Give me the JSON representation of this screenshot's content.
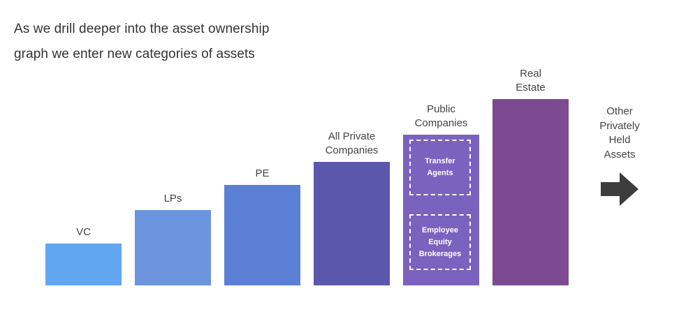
{
  "title": {
    "line1": "As we drill deeper into the asset ownership",
    "line2": "graph we enter new categories of assets"
  },
  "chart_data": {
    "type": "bar",
    "categories": [
      [
        "VC"
      ],
      [
        "LPs"
      ],
      [
        "PE"
      ],
      [
        "All Private",
        "Companies"
      ],
      [
        "Public",
        "Companies"
      ],
      [
        "Real",
        "Estate"
      ]
    ],
    "values": [
      1,
      1.8,
      2.4,
      2.95,
      3.6,
      4.45
    ],
    "ylim": [
      0,
      5
    ],
    "colors": [
      "#62a6f2",
      "#6c94df",
      "#5c7fd6",
      "#5a57ac",
      "#7c62bf",
      "#7d4a91"
    ],
    "grid": false,
    "legend": "none",
    "annotations": [
      {
        "category": "Public Companies",
        "lines": [
          "Transfer",
          "Agents"
        ]
      },
      {
        "category": "Public Companies",
        "lines": [
          "Employee",
          "Equity",
          "Brokerages"
        ]
      }
    ]
  },
  "side": {
    "lines": [
      "Other",
      "Privately",
      "Held",
      "Assets"
    ],
    "icon": "arrow-right-icon",
    "icon_color": "#3d3d3d"
  }
}
